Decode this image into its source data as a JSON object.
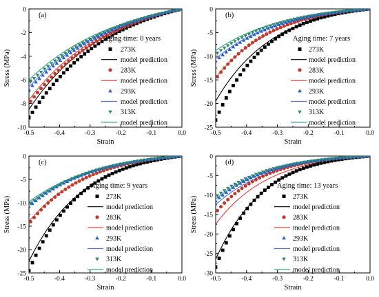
{
  "chart_data": [
    {
      "type": "scatter",
      "panel_label": "(a)",
      "aging_time": "Aging time: 0 years",
      "xlabel": "Strain",
      "ylabel": "Stress (MPa)",
      "xlim": [
        -0.5,
        0.0
      ],
      "ylim": [
        -10,
        0
      ],
      "xticks": [
        "-0.5",
        "-0.4",
        "-0.3",
        "-0.2",
        "-0.1",
        "0.0"
      ],
      "yticks": [
        "0",
        "-2",
        "-4",
        "-6",
        "-8",
        "-10"
      ],
      "series": [
        {
          "name": "273K",
          "marker": "square",
          "color": "#000000",
          "line_label": "model prediction",
          "line_color": "#000000",
          "end_stress": -9.2,
          "curvature": 3.8,
          "model_end_stress": -8.5,
          "model_curvature": 4.0
        },
        {
          "name": "283K",
          "marker": "circle",
          "color": "#c0392b",
          "line_label": "model prediction",
          "line_color": "#e0403a",
          "end_stress": -8.0,
          "curvature": 3.6,
          "model_end_stress": -7.7,
          "model_curvature": 3.8
        },
        {
          "name": "293K",
          "marker": "triangle-up",
          "color": "#2a5bd7",
          "line_label": "model prediction",
          "line_color": "#5577dd",
          "end_stress": -6.8,
          "curvature": 3.4,
          "model_end_stress": -6.6,
          "model_curvature": 3.5
        },
        {
          "name": "313K",
          "marker": "triangle-down",
          "color": "#2e8b6e",
          "line_label": "model prediction",
          "line_color": "#3aa58a",
          "end_stress": -6.3,
          "curvature": 3.3,
          "model_end_stress": -6.0,
          "model_curvature": 3.4
        }
      ]
    },
    {
      "type": "scatter",
      "panel_label": "(b)",
      "aging_time": "Aging time: 7 years",
      "xlabel": "Strain",
      "ylabel": "Stress (MPa)",
      "xlim": [
        -0.5,
        0.0
      ],
      "ylim": [
        -25,
        0
      ],
      "xticks": [
        "-0.5",
        "-0.4",
        "-0.3",
        "-0.2",
        "-0.1",
        "0.0"
      ],
      "yticks": [
        "0",
        "-5",
        "-10",
        "-15",
        "-20",
        "-25"
      ],
      "series": [
        {
          "name": "273K",
          "marker": "square",
          "color": "#000000",
          "line_label": "model prediction",
          "line_color": "#000000",
          "end_stress": -23.5,
          "curvature": 6.2,
          "model_end_stress": -19.5,
          "model_curvature": 5.4
        },
        {
          "name": "283K",
          "marker": "circle",
          "color": "#c0392b",
          "line_label": "model prediction",
          "line_color": "#e0403a",
          "end_stress": -14.8,
          "curvature": 5.6,
          "model_end_stress": -14.5,
          "model_curvature": 5.2
        },
        {
          "name": "293K",
          "marker": "triangle-up",
          "color": "#2a5bd7",
          "line_label": "model prediction",
          "line_color": "#5577dd",
          "end_stress": -11.0,
          "curvature": 5.0,
          "model_end_stress": -10.5,
          "model_curvature": 4.8
        },
        {
          "name": "313K",
          "marker": "triangle-down",
          "color": "#2e8b6e",
          "line_label": "model prediction",
          "line_color": "#3aa58a",
          "end_stress": -9.6,
          "curvature": 4.8,
          "model_end_stress": -8.8,
          "model_curvature": 4.6
        }
      ]
    },
    {
      "type": "scatter",
      "panel_label": "(c)",
      "aging_time": "Aging time: 9 years",
      "xlabel": "Strain",
      "ylabel": "Stress (MPa)",
      "xlim": [
        -0.5,
        0.0
      ],
      "ylim": [
        -25,
        0
      ],
      "xticks": [
        "-0.5",
        "-0.4",
        "-0.3",
        "-0.2",
        "-0.1",
        "0.0"
      ],
      "yticks": [
        "0",
        "-5",
        "-10",
        "-15",
        "-20",
        "-25"
      ],
      "series": [
        {
          "name": "273K",
          "marker": "square",
          "color": "#000000",
          "line_label": "model prediction",
          "line_color": "#000000",
          "end_stress": -24.5,
          "curvature": 6.0,
          "model_end_stress": -22.5,
          "model_curvature": 5.6
        },
        {
          "name": "283K",
          "marker": "circle",
          "color": "#c0392b",
          "line_label": "model prediction",
          "line_color": "#e0403a",
          "end_stress": -14.5,
          "curvature": 5.4,
          "model_end_stress": -14.0,
          "model_curvature": 5.2
        },
        {
          "name": "293K",
          "marker": "triangle-up",
          "color": "#2a5bd7",
          "line_label": "model prediction",
          "line_color": "#5577dd",
          "end_stress": -10.8,
          "curvature": 4.8,
          "model_end_stress": -10.2,
          "model_curvature": 4.6
        },
        {
          "name": "313K",
          "marker": "triangle-down",
          "color": "#2e8b6e",
          "line_label": "model prediction",
          "line_color": "#3aa58a",
          "end_stress": -10.4,
          "curvature": 4.7,
          "model_end_stress": -9.8,
          "model_curvature": 4.5
        }
      ]
    },
    {
      "type": "scatter",
      "panel_label": "(d)",
      "aging_time": "Aging time: 13 years",
      "xlabel": "Strain",
      "ylabel": "Stress (MPa)",
      "xlim": [
        -0.5,
        0.0
      ],
      "ylim": [
        -30,
        0
      ],
      "xticks": [
        "-0.5",
        "-0.4",
        "-0.3",
        "-0.2",
        "-0.1",
        "0.0"
      ],
      "yticks": [
        "0",
        "-5",
        "-10",
        "-15",
        "-20",
        "-25",
        "-30"
      ],
      "series": [
        {
          "name": "273K",
          "marker": "square",
          "color": "#000000",
          "line_label": "model prediction",
          "line_color": "#000000",
          "end_stress": -28.5,
          "curvature": 7.0,
          "model_end_stress": -26.5,
          "model_curvature": 6.4
        },
        {
          "name": "283K",
          "marker": "circle",
          "color": "#c0392b",
          "line_label": "model prediction",
          "line_color": "#e0403a",
          "end_stress": -14.5,
          "curvature": 6.2,
          "model_end_stress": -17.5,
          "model_curvature": 5.8
        },
        {
          "name": "293K",
          "marker": "triangle-up",
          "color": "#2a5bd7",
          "line_label": "model prediction",
          "line_color": "#5577dd",
          "end_stress": -11.5,
          "curvature": 5.8,
          "model_end_stress": -12.5,
          "model_curvature": 5.4
        },
        {
          "name": "313K",
          "marker": "triangle-down",
          "color": "#2e8b6e",
          "line_label": "model prediction",
          "line_color": "#3aa58a",
          "end_stress": -10.5,
          "curvature": 5.6,
          "model_end_stress": -11.0,
          "model_curvature": 5.2
        }
      ]
    }
  ]
}
